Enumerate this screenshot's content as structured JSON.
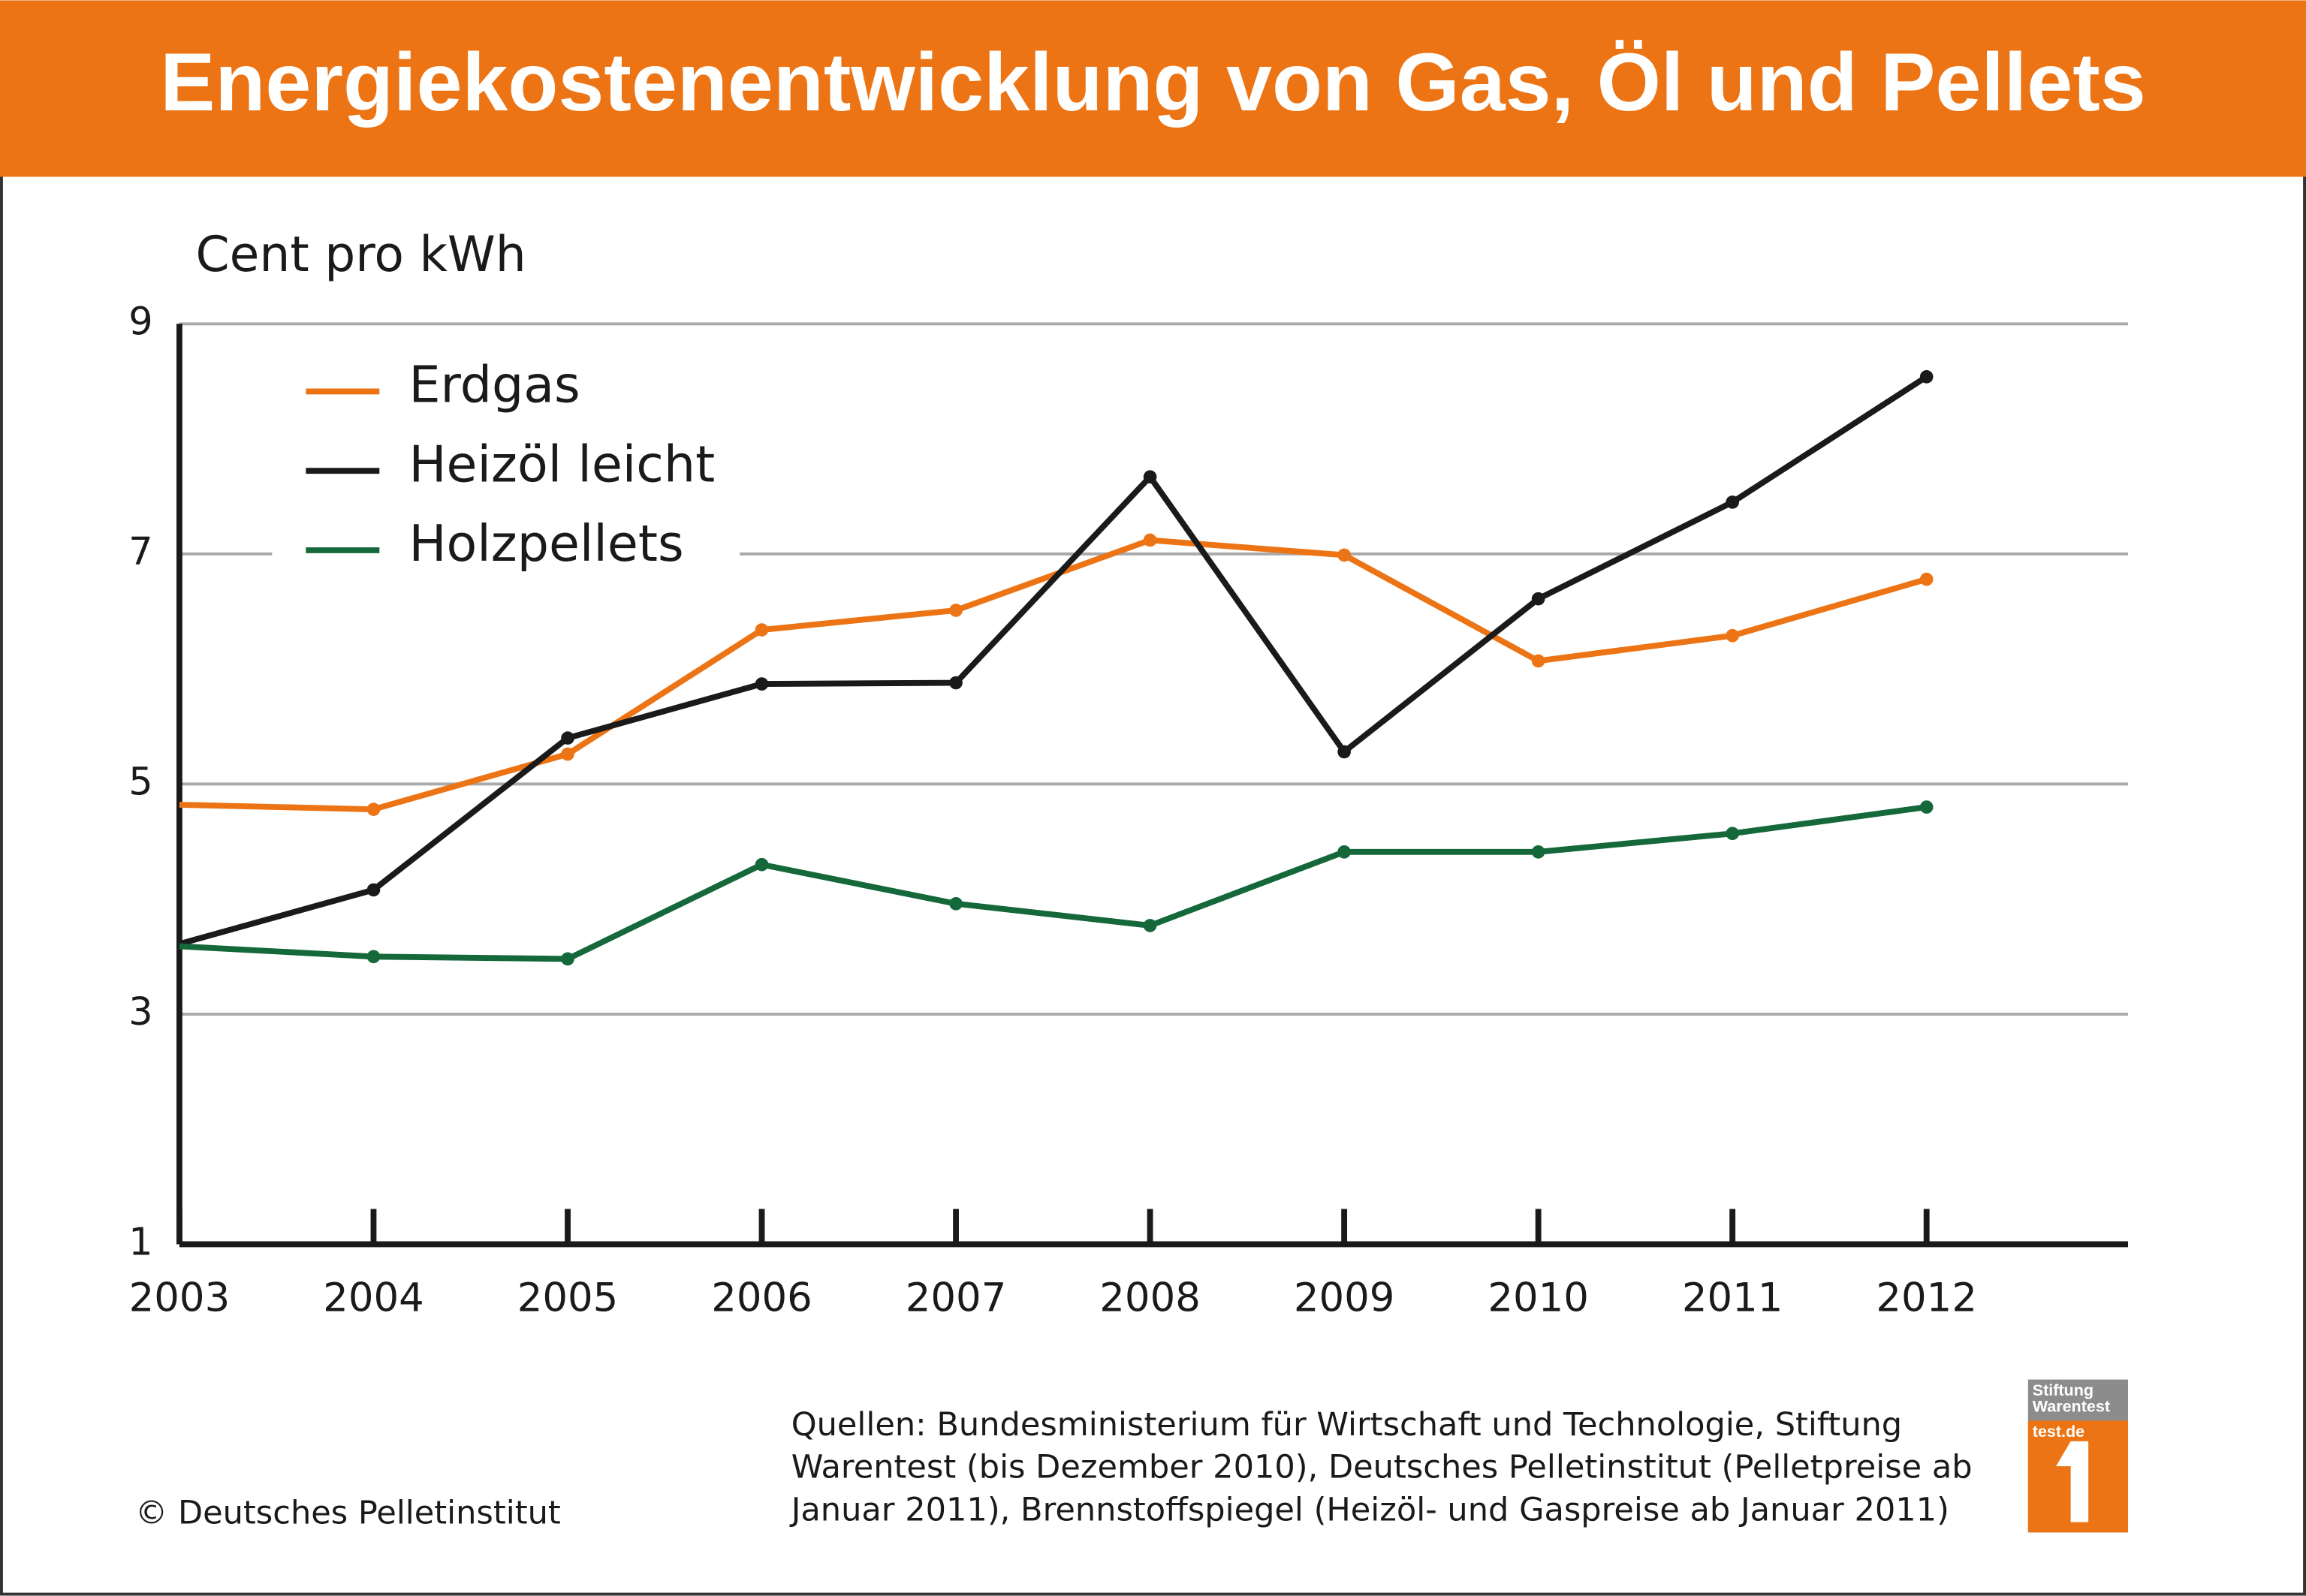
{
  "chart_data": {
    "type": "line",
    "title": "Energiekostenentwicklung von Gas, Öl und Pellets",
    "y_label": "Cent pro kWh",
    "x": [
      2003,
      2004,
      2005,
      2006,
      2007,
      2008,
      2009,
      2010,
      2011,
      2012
    ],
    "series": [
      {
        "name": "Erdgas",
        "color": "#ec7414",
        "values": [
          4.82,
          4.78,
          5.26,
          6.34,
          6.51,
          7.12,
          6.99,
          6.07,
          6.29,
          6.78
        ]
      },
      {
        "name": "Heizöl leicht",
        "color": "#1a1a1a",
        "values": [
          3.61,
          4.08,
          5.4,
          5.87,
          5.88,
          7.67,
          5.28,
          6.61,
          7.45,
          8.54
        ]
      },
      {
        "name": "Holzpellets",
        "color": "#14683a",
        "values": [
          3.59,
          3.5,
          3.48,
          4.3,
          3.96,
          3.77,
          4.41,
          4.41,
          4.57,
          4.8
        ]
      }
    ],
    "xlim": [
      2003,
      2013
    ],
    "xticks": [
      2003,
      2004,
      2005,
      2006,
      2007,
      2008,
      2009,
      2010,
      2011,
      2012
    ],
    "ylim": [
      1,
      9
    ],
    "yticks": [
      1,
      3,
      5,
      7,
      9
    ],
    "grid": true,
    "legend": "top-left",
    "source": [
      "Quellen: Bundesministerium für Wirtschaft und Technologie, Stiftung",
      "Warentest (bis Dezember 2010), Deutsches Pelletinstitut (Pelletpreise ab",
      "Januar 2011), Brennstoffspiegel (Heizöl- und Gaspreise ab Januar 2011)"
    ],
    "copyright": "© Deutsches Pelletinstitut",
    "logo": [
      "Stiftung",
      "Warentest",
      "test.de"
    ]
  }
}
